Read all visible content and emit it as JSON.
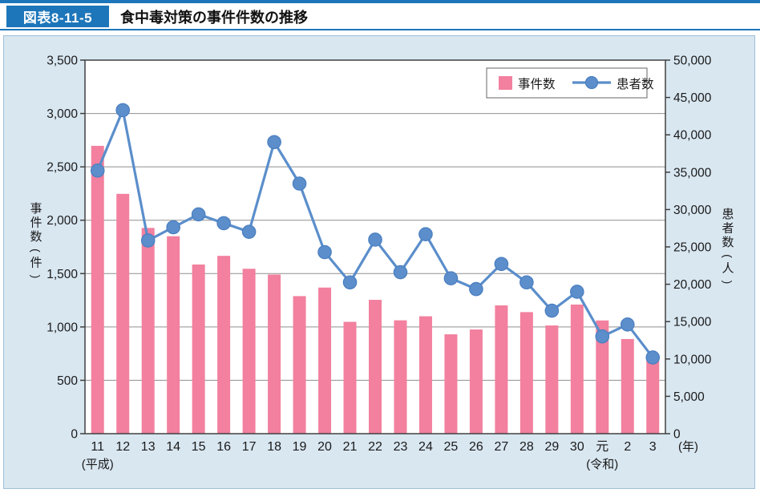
{
  "header": {
    "figure_label": "図表8-11-5",
    "title": "食中毒対策の事件件数の推移"
  },
  "colors": {
    "accent_blue": "#1d76ba",
    "panel_background": "#d9e7f1",
    "bar_pink": "#f2809e",
    "line_blue": "#5b8ecb",
    "gridline_gray": "#8f8f8f"
  },
  "chart_data": {
    "type": "bar+line dual-axis",
    "categories": [
      "11",
      "12",
      "13",
      "14",
      "15",
      "16",
      "17",
      "18",
      "19",
      "20",
      "21",
      "22",
      "23",
      "24",
      "25",
      "26",
      "27",
      "28",
      "29",
      "30",
      "元",
      "2",
      "3"
    ],
    "era_labels": [
      {
        "text": "(平成)",
        "category_index": 0
      },
      {
        "text": "(令和)",
        "category_index": 20
      }
    ],
    "x_unit_label": "(年)",
    "series": [
      {
        "name": "事件数",
        "type": "bar",
        "axis": "left",
        "color": "#f2809e",
        "values": [
          2697,
          2247,
          1928,
          1850,
          1585,
          1666,
          1545,
          1491,
          1289,
          1369,
          1048,
          1254,
          1062,
          1100,
          931,
          976,
          1202,
          1139,
          1014,
          1210,
          1061,
          887,
          717
        ]
      },
      {
        "name": "患者数",
        "type": "line",
        "axis": "right",
        "color": "#5b8ecb",
        "values": [
          35214,
          43307,
          25862,
          27629,
          29355,
          28175,
          27019,
          39026,
          33477,
          24303,
          20249,
          25972,
          21616,
          26699,
          20802,
          19355,
          22718,
          20252,
          16464,
          19000,
          13018,
          14613,
          10200
        ]
      }
    ],
    "left_axis": {
      "label": "事件数(件)",
      "min": 0,
      "max": 3500,
      "step": 500,
      "tick_labels": [
        "0",
        "500",
        "1,000",
        "1,500",
        "2,000",
        "2,500",
        "3,000",
        "3,500"
      ]
    },
    "right_axis": {
      "label": "患者数(人)",
      "min": 0,
      "max": 50000,
      "step": 5000,
      "tick_labels": [
        "0",
        "5,000",
        "10,000",
        "15,000",
        "20,000",
        "25,000",
        "30,000",
        "35,000",
        "40,000",
        "45,000",
        "50,000"
      ]
    },
    "gridlines": true,
    "legend_position": "top-right"
  }
}
